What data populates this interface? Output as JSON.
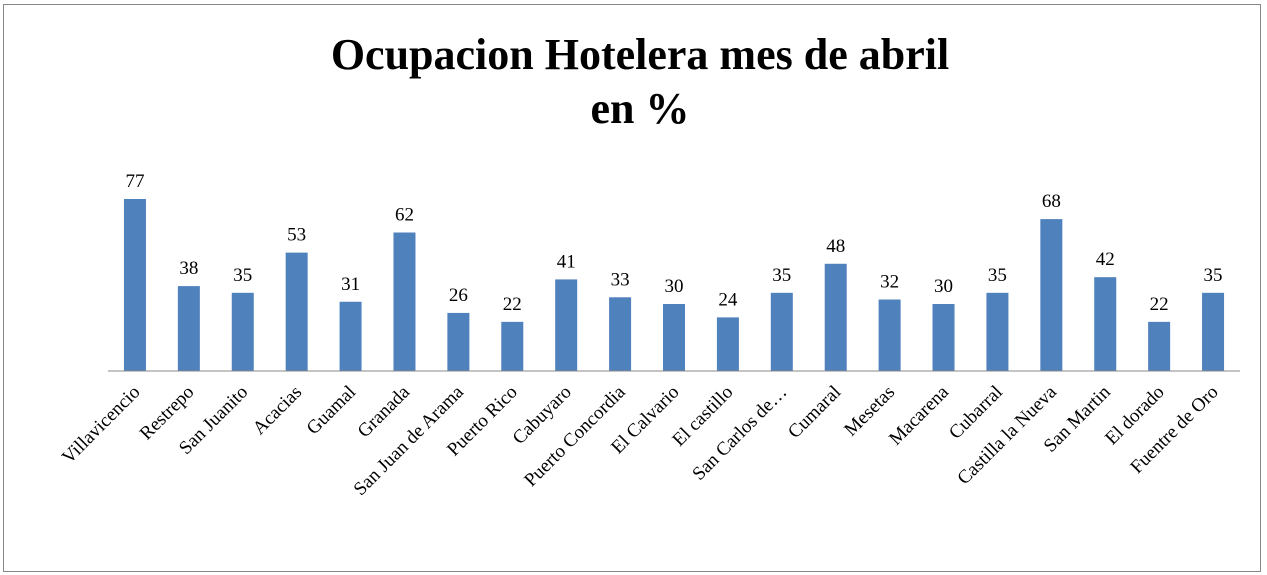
{
  "chart_data": {
    "type": "bar",
    "title": "Ocupacion Hotelera mes de abril en %",
    "categories": [
      "Villavicencio",
      "Restrepo",
      "San Juanito",
      "Acacias",
      "Guamal",
      "Granada",
      "San Juan de Arama",
      "Puerto Rico",
      "Cabuyaro",
      "Puerto Concordia",
      "El Calvario",
      "El castillo",
      "San Carlos de…",
      "Cumaral",
      "Mesetas",
      "Macarena",
      "Cubarral",
      "Castilla la Nueva",
      "San Martin",
      "El dorado",
      "Fuentre de Oro"
    ],
    "values": [
      77,
      38,
      35,
      53,
      31,
      62,
      26,
      22,
      41,
      33,
      30,
      24,
      35,
      48,
      32,
      30,
      35,
      68,
      42,
      22,
      35
    ],
    "color": "#4f81bd"
  }
}
